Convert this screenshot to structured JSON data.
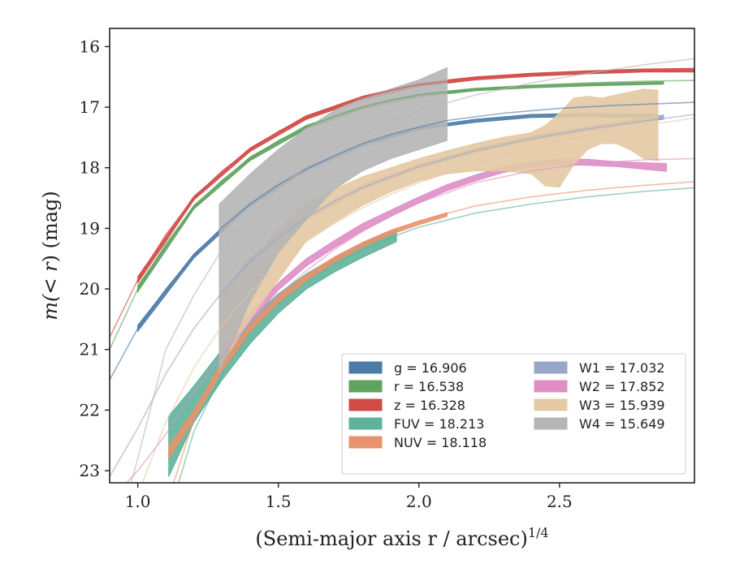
{
  "chart_data": {
    "type": "line",
    "xlabel": "(Semi-major axis r / arcsec)",
    "xlabel_power": "1/4",
    "ylabel_prefix": "m(",
    "ylabel_mid": "< r",
    "ylabel_suffix": ") (mag)",
    "xlim": [
      0.9,
      2.98
    ],
    "ylim": [
      23.2,
      15.7
    ],
    "y_inverted": true,
    "xticks": [
      1.0,
      1.5,
      2.0,
      2.5
    ],
    "xtick_labels": [
      "1.0",
      "1.5",
      "2.0",
      "2.5"
    ],
    "yticks": [
      16,
      17,
      18,
      19,
      20,
      21,
      22,
      23
    ],
    "ytick_labels": [
      "16",
      "17",
      "18",
      "19",
      "20",
      "21",
      "22",
      "23"
    ],
    "grid": false,
    "legend_position": "lower-right",
    "series": [
      {
        "name": "g",
        "legend_label": "g = 16.906",
        "color": "#4c7ba8",
        "model_x": [
          0.9,
          1.0,
          1.1,
          1.2,
          1.3,
          1.4,
          1.5,
          1.6,
          1.7,
          1.8,
          1.9,
          2.0,
          2.1,
          2.3,
          2.5,
          2.7,
          2.98
        ],
        "model_y": [
          21.5,
          20.65,
          20.0,
          19.45,
          18.98,
          18.6,
          18.28,
          18.02,
          17.8,
          17.6,
          17.45,
          17.33,
          17.22,
          17.1,
          17.02,
          16.97,
          16.92
        ],
        "band_x": [
          1.0,
          1.2,
          1.4,
          1.6,
          1.8,
          2.0,
          2.2,
          2.4,
          2.6,
          2.85
        ],
        "band_lo": [
          20.6,
          19.42,
          18.57,
          18.0,
          17.6,
          17.33,
          17.2,
          17.12,
          17.1,
          17.12
        ],
        "band_hi": [
          20.7,
          19.49,
          18.63,
          18.05,
          17.64,
          17.37,
          17.25,
          17.17,
          17.16,
          17.18
        ]
      },
      {
        "name": "r",
        "legend_label": "r = 16.538",
        "color": "#5fa35e",
        "model_x": [
          0.9,
          1.0,
          1.1,
          1.2,
          1.3,
          1.4,
          1.5,
          1.6,
          1.7,
          1.8,
          1.9,
          2.0,
          2.2,
          2.4,
          2.6,
          2.8,
          2.98
        ],
        "model_y": [
          21.0,
          20.0,
          19.25,
          18.65,
          18.2,
          17.85,
          17.55,
          17.33,
          17.15,
          17.0,
          16.88,
          16.8,
          16.7,
          16.64,
          16.6,
          16.57,
          16.56
        ],
        "band_x": [
          1.0,
          1.2,
          1.4,
          1.6,
          1.8,
          2.0,
          2.2,
          2.4,
          2.6,
          2.87
        ],
        "band_lo": [
          19.95,
          18.62,
          17.82,
          17.3,
          16.98,
          16.78,
          16.69,
          16.64,
          16.61,
          16.58
        ],
        "band_hi": [
          20.05,
          18.68,
          17.88,
          17.36,
          17.03,
          16.83,
          16.73,
          16.68,
          16.65,
          16.62
        ]
      },
      {
        "name": "z",
        "legend_label": "z = 16.328",
        "color": "#d24a46",
        "model_x": [
          0.9,
          1.0,
          1.1,
          1.2,
          1.3,
          1.4,
          1.5,
          1.6,
          1.7,
          1.8,
          1.9,
          2.0,
          2.2,
          2.4,
          2.6,
          2.8,
          2.98
        ],
        "model_y": [
          20.8,
          19.85,
          19.1,
          18.5,
          18.05,
          17.7,
          17.4,
          17.17,
          17.0,
          16.85,
          16.72,
          16.63,
          16.52,
          16.46,
          16.42,
          16.4,
          16.39
        ],
        "band_x": [
          1.0,
          1.2,
          1.4,
          1.6,
          1.8,
          2.0,
          2.2,
          2.4,
          2.6,
          2.8,
          2.98
        ],
        "band_lo": [
          19.8,
          18.47,
          17.67,
          17.14,
          16.82,
          16.6,
          16.5,
          16.44,
          16.4,
          16.37,
          16.36
        ],
        "band_hi": [
          19.9,
          18.53,
          17.73,
          17.2,
          16.88,
          16.66,
          16.55,
          16.49,
          16.45,
          16.42,
          16.42
        ]
      },
      {
        "name": "FUV",
        "legend_label": "FUV = 18.213",
        "color": "#5fb39a",
        "model_x": [
          1.1,
          1.2,
          1.3,
          1.4,
          1.5,
          1.6,
          1.7,
          1.8,
          1.9,
          2.0,
          2.2,
          2.4,
          2.6,
          2.8,
          2.98
        ],
        "model_y": [
          23.9,
          22.35,
          21.4,
          20.72,
          20.25,
          19.88,
          19.58,
          19.35,
          19.15,
          18.98,
          18.75,
          18.6,
          18.48,
          18.39,
          18.33
        ],
        "band_x": [
          1.11,
          1.2,
          1.3,
          1.4,
          1.5,
          1.6,
          1.7,
          1.8,
          1.92
        ],
        "band_lo": [
          22.1,
          21.6,
          21.0,
          20.5,
          20.08,
          19.75,
          19.48,
          19.25,
          19.02
        ],
        "band_hi": [
          23.1,
          22.2,
          21.5,
          20.9,
          20.4,
          20.0,
          19.72,
          19.48,
          19.22
        ]
      },
      {
        "name": "NUV",
        "legend_label": "NUV = 18.118",
        "color": "#e8936d",
        "model_x": [
          1.1,
          1.2,
          1.3,
          1.4,
          1.5,
          1.6,
          1.7,
          1.8,
          1.9,
          2.0,
          2.2,
          2.4,
          2.6,
          2.8,
          2.98
        ],
        "model_y": [
          23.6,
          22.15,
          21.25,
          20.62,
          20.15,
          19.8,
          19.5,
          19.25,
          19.05,
          18.88,
          18.63,
          18.48,
          18.37,
          18.29,
          18.23
        ],
        "band_x": [
          1.11,
          1.2,
          1.3,
          1.4,
          1.5,
          1.6,
          1.7,
          1.8,
          1.9,
          2.0,
          2.1
        ],
        "band_lo": [
          22.6,
          22.0,
          21.2,
          20.6,
          20.12,
          19.77,
          19.47,
          19.23,
          19.03,
          18.88,
          18.74
        ],
        "band_hi": [
          22.8,
          22.15,
          21.35,
          20.72,
          20.24,
          19.87,
          19.56,
          19.31,
          19.1,
          18.94,
          18.8
        ]
      },
      {
        "name": "W1",
        "legend_label": "W1 = 17.032",
        "color": "#98a6c8",
        "model_x": [
          0.9,
          1.0,
          1.1,
          1.2,
          1.3,
          1.4,
          1.5,
          1.6,
          1.7,
          1.8,
          1.9,
          2.0,
          2.2,
          2.4,
          2.6,
          2.8,
          2.98
        ],
        "model_y": [
          23.1,
          22.3,
          21.4,
          20.65,
          20.05,
          19.55,
          19.15,
          18.82,
          18.55,
          18.33,
          18.15,
          17.98,
          17.72,
          17.52,
          17.36,
          17.23,
          17.12
        ],
        "band_x": [
          1.29,
          1.4,
          1.5,
          1.6,
          1.8,
          2.0,
          2.2,
          2.4,
          2.6,
          2.87
        ],
        "band_lo": [
          20.1,
          19.5,
          19.1,
          18.78,
          18.28,
          17.94,
          17.68,
          17.48,
          17.32,
          17.13
        ],
        "band_hi": [
          20.2,
          19.6,
          19.2,
          18.86,
          18.35,
          18.01,
          17.75,
          17.55,
          17.39,
          17.2
        ]
      },
      {
        "name": "W2",
        "legend_label": "W2 = 17.852",
        "color": "#de8ec5",
        "model_x": [
          0.9,
          1.0,
          1.1,
          1.2,
          1.3,
          1.4,
          1.5,
          1.6,
          1.7,
          1.8,
          1.9,
          2.0,
          2.2,
          2.4,
          2.6,
          2.8,
          2.98
        ],
        "model_y": [
          23.5,
          23.0,
          22.4,
          21.7,
          21.1,
          20.55,
          20.1,
          19.7,
          19.35,
          19.05,
          18.8,
          18.58,
          18.25,
          18.05,
          17.93,
          17.87,
          17.85
        ],
        "band_x": [
          1.29,
          1.4,
          1.5,
          1.6,
          1.7,
          1.8,
          1.9,
          2.0,
          2.1,
          2.2,
          2.3,
          2.4,
          2.5,
          2.6,
          2.7,
          2.88
        ],
        "band_lo": [
          21.0,
          20.4,
          19.9,
          19.5,
          19.2,
          18.92,
          18.7,
          18.48,
          18.28,
          18.12,
          17.98,
          17.9,
          17.86,
          17.86,
          17.9,
          17.93
        ],
        "band_hi": [
          21.2,
          20.55,
          20.02,
          19.62,
          19.32,
          19.04,
          18.8,
          18.58,
          18.38,
          18.22,
          18.08,
          17.99,
          17.95,
          17.96,
          17.98,
          18.06
        ]
      },
      {
        "name": "W3",
        "legend_label": "W3 = 15.939",
        "color": "#e3c9a4",
        "model_x": [
          0.9,
          1.0,
          1.1,
          1.2,
          1.3,
          1.4,
          1.5,
          1.6,
          1.7,
          1.8,
          1.9,
          2.0,
          2.2,
          2.4,
          2.6,
          2.8,
          2.98
        ],
        "model_y": [
          24.5,
          23.4,
          22.2,
          21.3,
          20.6,
          20.05,
          19.6,
          19.22,
          18.92,
          18.66,
          18.44,
          18.25,
          17.92,
          17.66,
          17.46,
          17.3,
          17.18
        ],
        "band_x": [
          1.29,
          1.4,
          1.5,
          1.6,
          1.7,
          1.8,
          1.9,
          2.0,
          2.1,
          2.2,
          2.3,
          2.4,
          2.45,
          2.5,
          2.55,
          2.6,
          2.65,
          2.7,
          2.75,
          2.8,
          2.85
        ],
        "band_lo": [
          20.1,
          19.6,
          19.0,
          18.6,
          18.35,
          18.15,
          18.0,
          17.85,
          17.72,
          17.6,
          17.5,
          17.42,
          17.3,
          17.1,
          16.85,
          16.82,
          16.85,
          16.8,
          16.75,
          16.7,
          16.72
        ],
        "band_hi": [
          21.3,
          20.5,
          19.85,
          19.2,
          18.9,
          18.62,
          18.4,
          18.22,
          18.1,
          18.05,
          18.05,
          18.1,
          18.3,
          18.32,
          17.95,
          17.7,
          17.6,
          17.6,
          17.7,
          17.85,
          17.88
        ]
      },
      {
        "name": "W4",
        "legend_label": "W4 = 15.649",
        "color": "#b5b5b5",
        "model_x": [
          0.9,
          1.0,
          1.1,
          1.2,
          1.3,
          1.4,
          1.5,
          1.6,
          1.7,
          1.8,
          1.9,
          2.0,
          2.2,
          2.4,
          2.6,
          2.8,
          2.98
        ],
        "model_y": [
          24.5,
          22.8,
          21.0,
          20.1,
          19.35,
          18.8,
          18.35,
          17.98,
          17.68,
          17.44,
          17.23,
          17.06,
          16.8,
          16.6,
          16.44,
          16.3,
          16.2
        ],
        "band_x": [
          1.29,
          1.4,
          1.5,
          1.6,
          1.7,
          1.8,
          1.9,
          2.0,
          2.1
        ],
        "band_lo": [
          18.6,
          18.1,
          17.7,
          17.35,
          17.05,
          16.85,
          16.7,
          16.55,
          16.35
        ],
        "band_hi": [
          21.4,
          20.2,
          19.4,
          18.85,
          18.35,
          18.05,
          17.85,
          17.7,
          17.55
        ]
      }
    ]
  }
}
